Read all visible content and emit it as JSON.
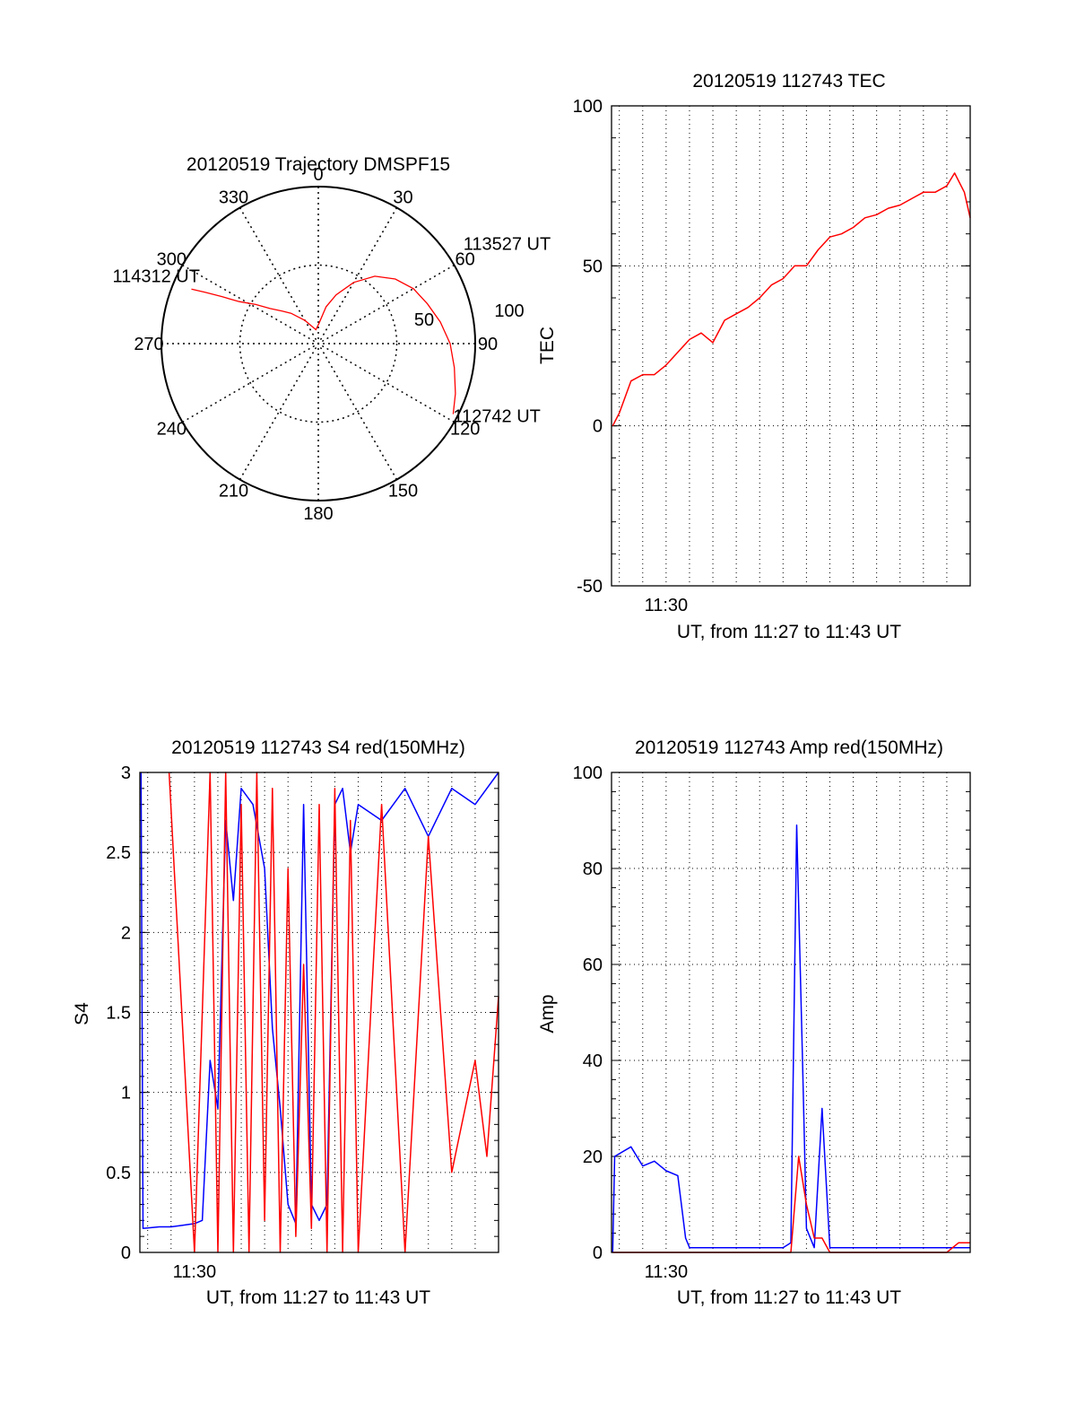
{
  "colors": {
    "red": "#ff0000",
    "blue": "#0000ff",
    "axis": "#000000",
    "grid": "#000000"
  },
  "chart_data": [
    {
      "id": "trajectory",
      "type": "polar",
      "title": "20120519 Trajectory DMSPF15",
      "angle_labels": [
        "0",
        "30",
        "60",
        "90",
        "120",
        "150",
        "180",
        "210",
        "240",
        "270",
        "300",
        "330"
      ],
      "radius_labels": [
        "50",
        "100"
      ],
      "rlim": [
        0,
        100
      ],
      "trajectory": {
        "points": [
          [
            117.6,
            97
          ],
          [
            110,
            93
          ],
          [
            100,
            88
          ],
          [
            90,
            84
          ],
          [
            80,
            79
          ],
          [
            70,
            74
          ],
          [
            60,
            70
          ],
          [
            50,
            64
          ],
          [
            40,
            56
          ],
          [
            30,
            45
          ],
          [
            20,
            33
          ],
          [
            12,
            24
          ],
          [
            2,
            13
          ],
          [
            -10,
            9
          ],
          [
            -30,
            17
          ],
          [
            -42,
            26
          ],
          [
            -48,
            31
          ],
          [
            -54,
            38
          ],
          [
            -58,
            47
          ],
          [
            -62,
            57
          ],
          [
            -64,
            68
          ],
          [
            -65.6,
            79
          ],
          [
            -66.8,
            88
          ]
        ],
        "markers": [
          {
            "label": "112742 UT",
            "angle": 117.6,
            "r": 97
          },
          {
            "label": "113527 UT",
            "angle": 62,
            "r": 71
          },
          {
            "label": "114312 UT",
            "angle": -66.8,
            "r": 88
          }
        ]
      }
    },
    {
      "id": "tec",
      "type": "line",
      "title": "20120519 112743 TEC",
      "ylabel": "TEC",
      "xlabel": "UT, from 11:27 to 11:43 UT",
      "x_tick_labels": [
        "11:30"
      ],
      "y_tick_labels": [
        "-50",
        "0",
        "50",
        "100"
      ],
      "ylim": [
        -50,
        100
      ],
      "series": [
        {
          "color": "red",
          "x": [
            "11:27:43",
            "11:28",
            "11:28:30",
            "11:29",
            "11:29:30",
            "11:30",
            "11:30:30",
            "11:31",
            "11:31:30",
            "11:32",
            "11:32:30",
            "11:33",
            "11:33:30",
            "11:34",
            "11:34:30",
            "11:35",
            "11:35:30",
            "11:36",
            "11:36:30",
            "11:37",
            "11:37:30",
            "11:38",
            "11:38:30",
            "11:39",
            "11:39:30",
            "11:40",
            "11:40:30",
            "11:41",
            "11:41:30",
            "11:42",
            "11:42:20",
            "11:42:45",
            "11:43"
          ],
          "y": [
            0,
            4,
            14,
            16,
            16,
            19,
            23,
            27,
            29,
            26,
            33,
            35,
            37,
            40,
            44,
            46,
            50,
            50,
            55,
            59,
            60,
            62,
            65,
            66,
            68,
            69,
            71,
            73,
            73,
            75,
            79,
            73,
            65
          ]
        }
      ]
    },
    {
      "id": "s4",
      "type": "line",
      "title": "20120519 112743 S4 red(150MHz)",
      "ylabel": "S4",
      "xlabel": "UT, from 11:27 to 11:43 UT",
      "x_tick_labels": [
        "11:30"
      ],
      "y_tick_labels": [
        "0",
        "0.5",
        "1",
        "1.5",
        "2",
        "2.5",
        "3"
      ],
      "ylim": [
        0,
        3
      ],
      "series": [
        {
          "color": "blue",
          "x": [
            "11:27:43",
            "11:27:48",
            "11:28:30",
            "11:29",
            "11:29:30",
            "11:30",
            "11:30:20",
            "11:30:40",
            "11:31",
            "11:31:20",
            "11:31:40",
            "11:32",
            "11:32:30",
            "11:33",
            "11:33:20",
            "11:33:40",
            "11:34",
            "11:34:20",
            "11:34:40",
            "11:35",
            "11:35:20",
            "11:35:40",
            "11:36",
            "11:36:20",
            "11:36:40",
            "11:37",
            "11:38",
            "11:39",
            "11:40",
            "11:41",
            "11:42",
            "11:43"
          ],
          "y": [
            3,
            0.15,
            0.16,
            0.16,
            0.17,
            0.18,
            0.2,
            1.2,
            0.9,
            2.7,
            2.2,
            2.9,
            2.8,
            2.4,
            1.4,
            0.9,
            0.3,
            0.18,
            2.8,
            0.3,
            0.2,
            0.3,
            2.8,
            2.9,
            2.5,
            2.8,
            2.7,
            2.9,
            2.6,
            2.9,
            2.8,
            3
          ]
        },
        {
          "color": "red",
          "x": [
            "11:28:55",
            "11:30",
            "11:30:40",
            "11:31",
            "11:31:20",
            "11:31:40",
            "11:32",
            "11:32:20",
            "11:32:40",
            "11:33",
            "11:33:20",
            "11:33:40",
            "11:34",
            "11:34:20",
            "11:34:40",
            "11:35",
            "11:35:20",
            "11:35:40",
            "11:36",
            "11:36:20",
            "11:36:40",
            "11:37",
            "11:38",
            "11:39",
            "11:40",
            "11:41",
            "11:42",
            "11:42:30",
            "11:43"
          ],
          "y": [
            3,
            0,
            3,
            0,
            3,
            0,
            2.8,
            0,
            3,
            0.2,
            2.9,
            0,
            2.4,
            0.1,
            1.8,
            0.15,
            2.8,
            0,
            2.9,
            0,
            2.7,
            0,
            2.8,
            0,
            2.6,
            0.5,
            1.2,
            0.6,
            1.6
          ]
        }
      ]
    },
    {
      "id": "amp",
      "type": "line",
      "title": "20120519 112743 Amp red(150MHz)",
      "ylabel": "Amp",
      "xlabel": "UT, from 11:27 to 11:43 UT",
      "x_tick_labels": [
        "11:30"
      ],
      "y_tick_labels": [
        "0",
        "20",
        "40",
        "60",
        "80",
        "100"
      ],
      "ylim": [
        0,
        100
      ],
      "series": [
        {
          "color": "blue",
          "x": [
            "11:27:43",
            "11:27:48",
            "11:28:30",
            "11:29",
            "11:29:30",
            "11:30",
            "11:30:30",
            "11:30:50",
            "11:31",
            "11:31:30",
            "11:32",
            "11:33",
            "11:34",
            "11:35",
            "11:35:20",
            "11:35:35",
            "11:35:50",
            "11:36",
            "11:36:20",
            "11:36:40",
            "11:37",
            "11:38",
            "11:39",
            "11:40",
            "11:41",
            "11:42",
            "11:43"
          ],
          "y": [
            0,
            20,
            22,
            18,
            19,
            17,
            16,
            3,
            1,
            1,
            1,
            1,
            1,
            1,
            2,
            89,
            40,
            5,
            1,
            30,
            1,
            1,
            1,
            1,
            1,
            1,
            1
          ]
        },
        {
          "color": "red",
          "x": [
            "11:27:43",
            "11:30:50",
            "11:35:20",
            "11:35:40",
            "11:36",
            "11:36:20",
            "11:36:40",
            "11:37",
            "11:41",
            "11:42",
            "11:42:30",
            "11:43"
          ],
          "y": [
            0,
            0,
            0,
            20,
            10,
            3,
            3,
            0,
            0,
            0,
            2,
            2
          ]
        }
      ]
    }
  ]
}
